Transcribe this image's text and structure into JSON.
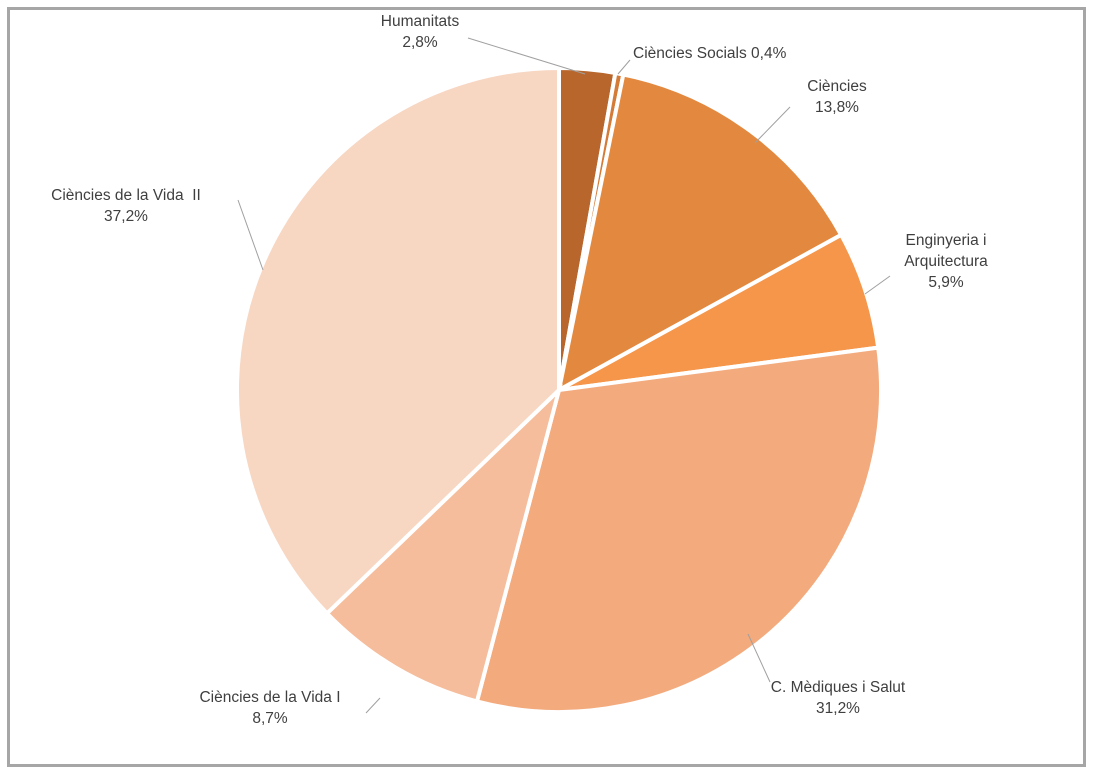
{
  "chart_data": {
    "type": "pie",
    "title": "",
    "slices": [
      {
        "label": "Humanitats",
        "value": 2.8,
        "value_label": "2,8%",
        "color": "#b9662c"
      },
      {
        "label": "Ciències Socials",
        "value": 0.4,
        "value_label": "0,4%",
        "color": "#d47b38"
      },
      {
        "label": "Ciències",
        "value": 13.8,
        "value_label": "13,8%",
        "color": "#e3893f"
      },
      {
        "label": "Enginyeria i Arquitectura",
        "label_lines": [
          "Enginyeria i",
          "Arquitectura"
        ],
        "value": 5.9,
        "value_label": "5,9%",
        "color": "#f5964b"
      },
      {
        "label": "C. Mèdiques i Salut",
        "value": 31.2,
        "value_label": "31,2%",
        "color": "#f3aa7d"
      },
      {
        "label": "Ciències de la Vida I",
        "value": 8.7,
        "value_label": "8,7%",
        "color": "#f5bd9b"
      },
      {
        "label": "Ciències de la Vida  II",
        "value": 37.2,
        "value_label": "37,2%",
        "color": "#f7d6c2"
      }
    ],
    "legend": "none",
    "data_labels": "outside with leader lines"
  }
}
